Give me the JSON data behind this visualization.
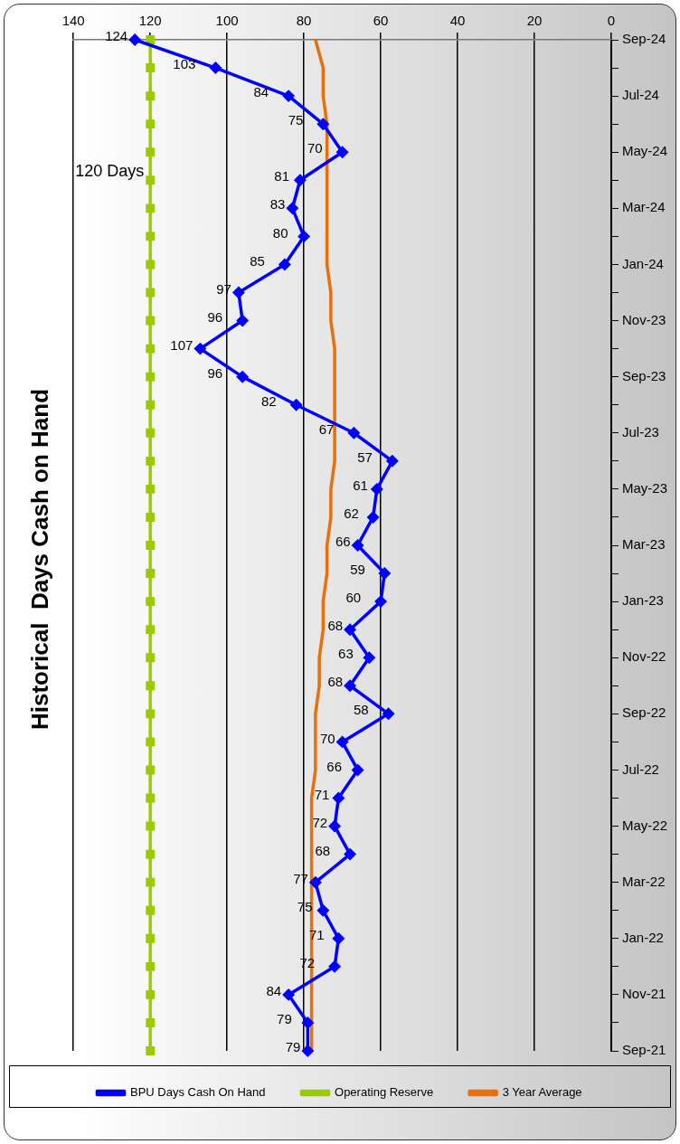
{
  "chart_data": {
    "type": "line",
    "title": "Historical  Days Cash on Hand",
    "orientation": "horizontal",
    "categories": [
      "Sep-24",
      null,
      "Jul-24",
      null,
      "May-24",
      null,
      "Mar-24",
      null,
      "Jan-24",
      null,
      "Nov-23",
      null,
      "Sep-23",
      null,
      "Jul-23",
      null,
      "May-23",
      null,
      "Mar-23",
      null,
      "Jan-23",
      null,
      "Nov-22",
      null,
      "Sep-22",
      null,
      "Jul-22",
      null,
      "May-22",
      null,
      "Mar-22",
      null,
      "Jan-22",
      null,
      "Nov-21",
      null,
      "Sep-21"
    ],
    "series": [
      {
        "name": "BPU Days Cash On Hand",
        "color": "#0000ff",
        "marker": "diamond",
        "values": [
          124,
          103,
          84,
          75,
          70,
          81,
          83,
          80,
          85,
          97,
          96,
          107,
          96,
          82,
          67,
          57,
          61,
          62,
          66,
          59,
          60,
          68,
          63,
          68,
          58,
          70,
          66,
          71,
          72,
          68,
          77,
          75,
          71,
          72,
          84,
          79,
          79
        ],
        "value_labels": [
          "124",
          "103",
          "84",
          "75",
          "70",
          "81",
          "83",
          "80",
          "85",
          "97",
          "96",
          "107",
          "96",
          "82",
          "67",
          "57",
          "61",
          "62",
          "66",
          "59",
          "60",
          "68",
          "63",
          "68",
          "58",
          "70",
          "66",
          "71",
          "72",
          "68",
          "77",
          "75",
          "71",
          "72",
          "84",
          "79",
          "79"
        ]
      },
      {
        "name": "Operating Reserve",
        "color": "#99cc00",
        "marker": "square",
        "values": [
          120,
          120,
          120,
          120,
          120,
          120,
          120,
          120,
          120,
          120,
          120,
          120,
          120,
          120,
          120,
          120,
          120,
          120,
          120,
          120,
          120,
          120,
          120,
          120,
          120,
          120,
          120,
          120,
          120,
          120,
          120,
          120,
          120,
          120,
          120,
          120,
          120
        ]
      },
      {
        "name": "3 Year Average",
        "color": "#e8700a",
        "marker": "none",
        "values": [
          77,
          75,
          75,
          74,
          74,
          74,
          74,
          74,
          74,
          73,
          73,
          72,
          72,
          72,
          72,
          72,
          73,
          73,
          74,
          74,
          75,
          75,
          76,
          76,
          77,
          77,
          77,
          78,
          78,
          78,
          78,
          78,
          78,
          78,
          78,
          78,
          78
        ]
      }
    ],
    "xlim": [
      140,
      0
    ],
    "xticks": [
      140,
      120,
      100,
      80,
      60,
      40,
      20,
      0
    ],
    "grid": "x",
    "legend": "bottom",
    "annotations": [
      {
        "text": "120 Days",
        "x": 120,
        "y": "Mar-24"
      }
    ]
  }
}
